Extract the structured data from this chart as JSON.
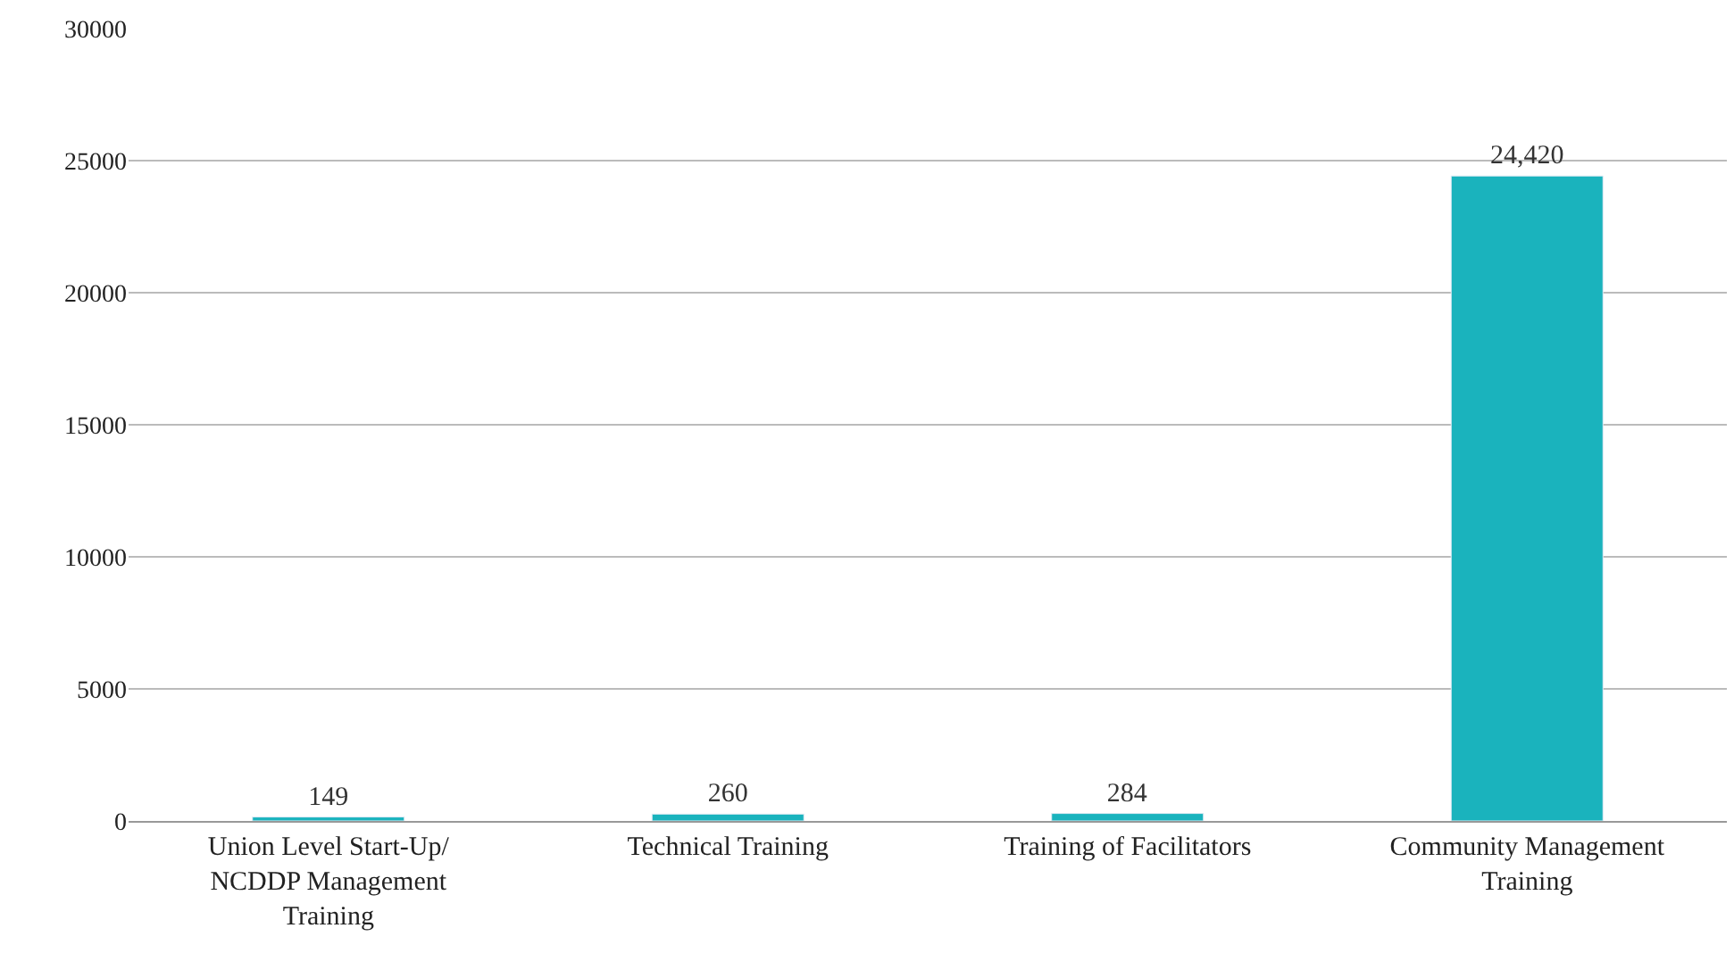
{
  "chart_data": {
    "type": "bar",
    "categories": [
      "Union Level Start-Up/ NCDDP Management Training",
      "Technical Training",
      "Training of Facilitators",
      "Community Management Training"
    ],
    "values": [
      149,
      260,
      284,
      24420
    ],
    "value_labels": [
      "149",
      "260",
      "284",
      "24,420"
    ],
    "color": "#1ab3bd",
    "ylim": [
      0,
      30000
    ],
    "yticks": [
      0,
      5000,
      10000,
      15000,
      20000,
      25000,
      30000
    ],
    "grid": "y"
  }
}
